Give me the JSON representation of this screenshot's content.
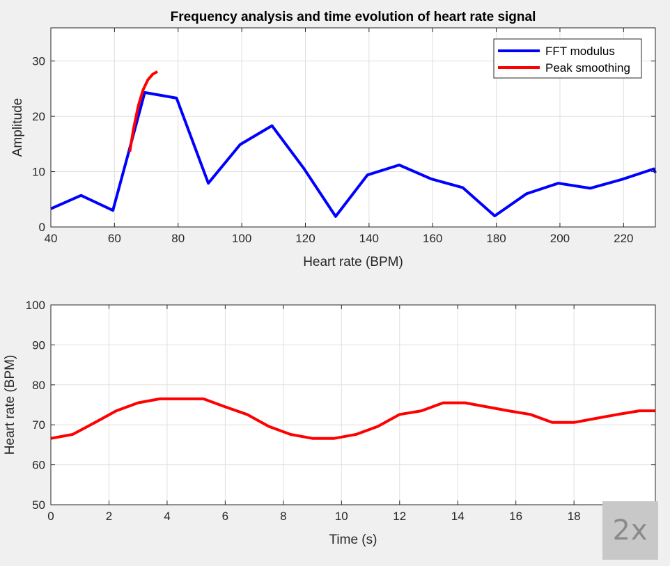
{
  "speed_badge": "2x",
  "chart_data": [
    {
      "type": "line",
      "title": "Frequency analysis and time evolution of heart rate signal",
      "xlabel": "Heart rate (BPM)",
      "ylabel": "Amplitude",
      "xlim": [
        40,
        230
      ],
      "ylim": [
        0,
        36
      ],
      "xticks": [
        40,
        60,
        80,
        100,
        120,
        140,
        160,
        180,
        200,
        220
      ],
      "yticks": [
        0,
        10,
        20,
        30
      ],
      "grid": true,
      "legend_position": "top-right",
      "series": [
        {
          "name": "FFT modulus",
          "color": "#0000ff",
          "x": [
            40,
            49.5,
            59.5,
            64.5,
            69.5,
            79.5,
            89.5,
            99.5,
            109.5,
            119.5,
            129.5,
            139.5,
            149.5,
            159.5,
            169.5,
            179.5,
            189.5,
            199.5,
            209.5,
            219.5,
            229.5,
            230
          ],
          "y": [
            3.3,
            5.7,
            3.0,
            13.6,
            24.3,
            23.3,
            7.9,
            14.9,
            18.3,
            10.6,
            1.9,
            9.4,
            11.2,
            8.7,
            7.1,
            2.0,
            6.0,
            7.9,
            7.0,
            8.6,
            10.5,
            9.8
          ]
        },
        {
          "name": "Peak smoothing",
          "color": "#ff0000",
          "x": [
            64.8,
            66.0,
            67.5,
            69.0,
            70.5,
            72.0,
            73.5
          ],
          "y": [
            13.6,
            17.8,
            21.9,
            24.8,
            26.6,
            27.6,
            28.1
          ]
        }
      ]
    },
    {
      "type": "line",
      "xlabel": "Time (s)",
      "ylabel": "Heart rate (BPM)",
      "xlim": [
        0,
        20.8
      ],
      "ylim": [
        50,
        100
      ],
      "xticks": [
        0,
        2,
        4,
        6,
        8,
        10,
        12,
        14,
        16,
        18
      ],
      "yticks": [
        50,
        60,
        70,
        80,
        90,
        100
      ],
      "grid": true,
      "series": [
        {
          "color": "#ff0000",
          "x": [
            0,
            0.75,
            1.5,
            2.25,
            3.0,
            3.75,
            4.5,
            5.25,
            6.0,
            6.75,
            7.5,
            8.25,
            9.0,
            9.75,
            10.5,
            11.25,
            12.0,
            12.75,
            13.5,
            14.25,
            15.0,
            15.75,
            16.5,
            17.25,
            18.0,
            18.75,
            19.5,
            20.25,
            20.8
          ],
          "y": [
            66.6,
            67.6,
            70.5,
            73.5,
            75.5,
            76.5,
            76.5,
            76.5,
            74.5,
            72.6,
            69.6,
            67.6,
            66.6,
            66.6,
            67.6,
            69.6,
            72.6,
            73.5,
            75.5,
            75.5,
            74.5,
            73.5,
            72.6,
            70.6,
            70.6,
            71.6,
            72.6,
            73.5,
            73.5
          ]
        }
      ]
    }
  ]
}
